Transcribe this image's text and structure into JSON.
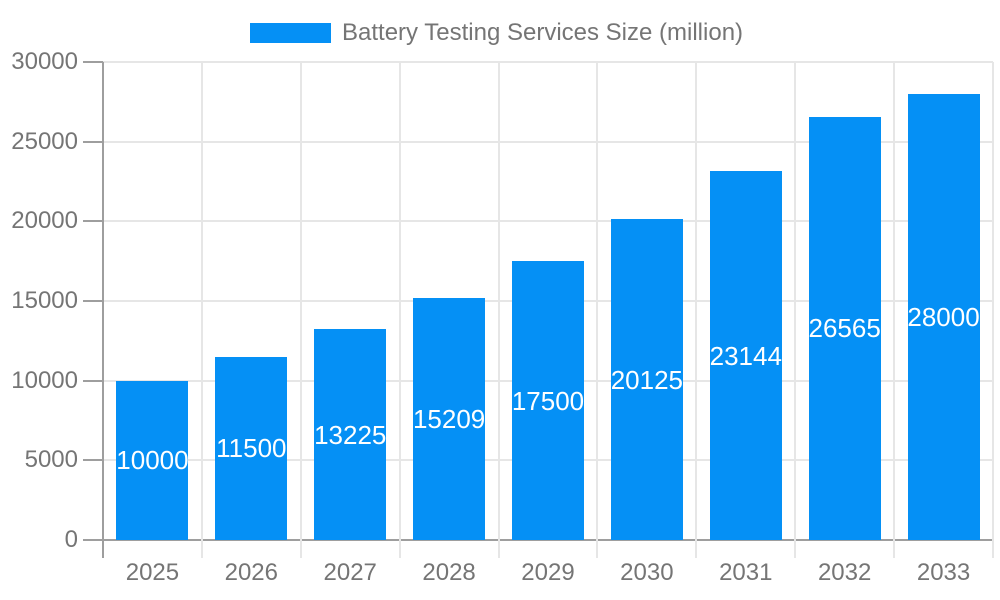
{
  "chart_data": {
    "type": "bar",
    "title": "Battery Testing Services Size (million)",
    "legend": "Battery Testing Services Size (million)",
    "legend_position": "top",
    "categories": [
      "2025",
      "2026",
      "2027",
      "2028",
      "2029",
      "2030",
      "2031",
      "2032",
      "2033"
    ],
    "values": [
      10000,
      11500,
      13225,
      15209,
      17500,
      20125,
      23144,
      26565,
      28000
    ],
    "xlabel": "",
    "ylabel": "",
    "ylim": [
      0,
      30000
    ],
    "ytick_step": 5000,
    "ytick_labels": [
      "0",
      "5000",
      "10000",
      "15000",
      "20000",
      "25000",
      "30000"
    ],
    "grid": "on",
    "colors": {
      "bar": "#0590f5",
      "bar_value_text": "#ffffff",
      "axis": "#9e9e9e",
      "grid": "#e6e6e6",
      "tick_text": "#757575",
      "legend_text": "#757575",
      "background": "#ffffff"
    }
  }
}
